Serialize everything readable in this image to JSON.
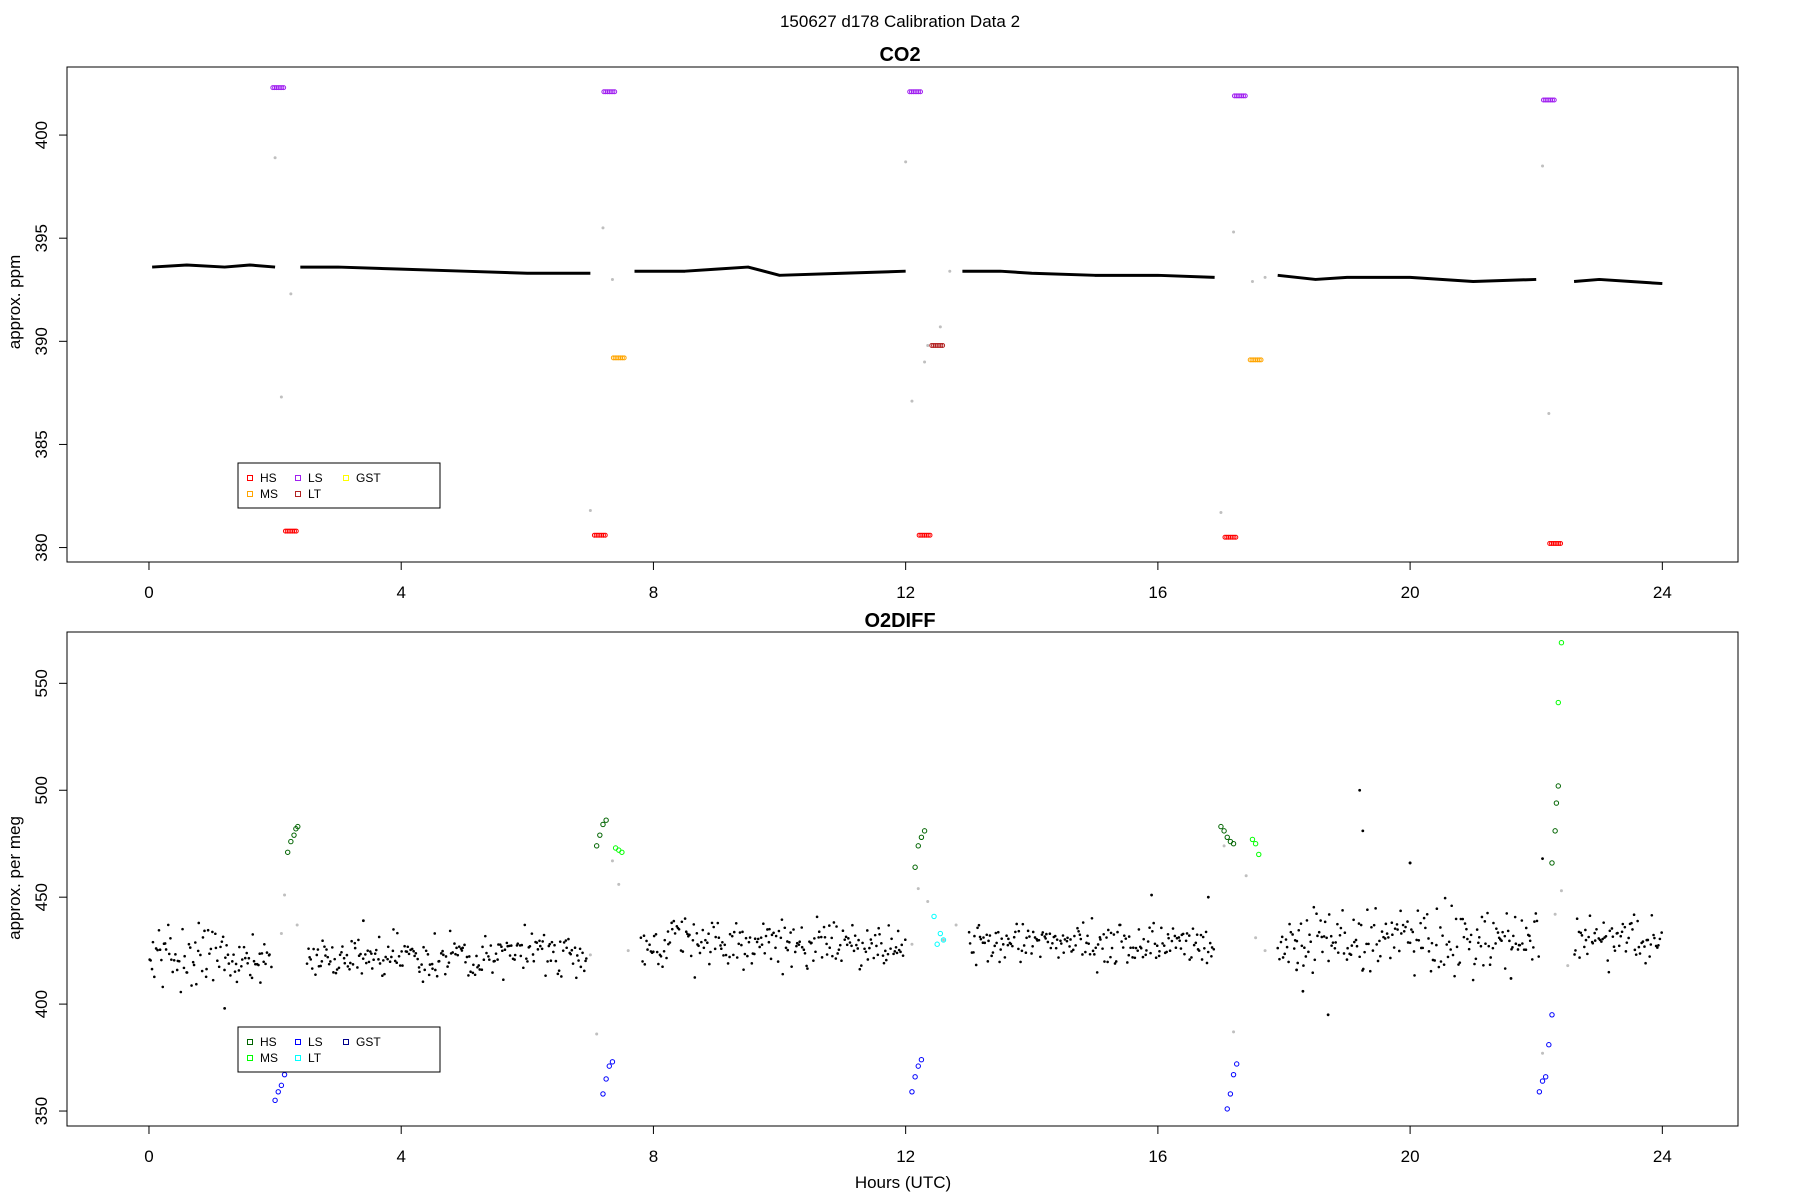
{
  "figure": {
    "suptitle": "150627   d178   Calibration Data 2",
    "xlabel": "Hours (UTC)"
  },
  "chart_data": [
    {
      "type": "scatter",
      "title": "CO2",
      "xlabel": "",
      "ylabel": "approx. ppm",
      "xlim": [
        -1.3,
        25.2
      ],
      "ylim": [
        379.3,
        403.3
      ],
      "xticks": [
        0,
        4,
        8,
        12,
        16,
        20,
        24
      ],
      "yticks": [
        380,
        385,
        390,
        395,
        400
      ],
      "legend": {
        "placement": "bottom-left",
        "entries": [
          {
            "label": "HS",
            "color": "#ff0000"
          },
          {
            "label": "MS",
            "color": "#ffa500"
          },
          {
            "label": "LS",
            "color": "#a020f0"
          },
          {
            "label": "LT",
            "color": "#b22222"
          },
          {
            "label": "GST",
            "color": "#ffff00"
          }
        ]
      },
      "ambient": {
        "color": "#000000",
        "segments": [
          {
            "x": [
              0.05,
              0.6,
              1.2,
              1.6,
              2.0
            ],
            "y": [
              393.6,
              393.7,
              393.6,
              393.7,
              393.6
            ]
          },
          {
            "x": [
              2.4,
              3.0,
              4.0,
              5.0,
              6.0,
              7.0
            ],
            "y": [
              393.6,
              393.6,
              393.5,
              393.4,
              393.3,
              393.3
            ]
          },
          {
            "x": [
              7.7,
              8.5,
              9.0,
              9.5,
              10.0,
              11.0,
              12.0
            ],
            "y": [
              393.4,
              393.4,
              393.5,
              393.6,
              393.2,
              393.3,
              393.4
            ]
          },
          {
            "x": [
              12.9,
              13.5,
              14.0,
              15.0,
              16.0,
              16.9
            ],
            "y": [
              393.4,
              393.4,
              393.3,
              393.2,
              393.2,
              393.1
            ]
          },
          {
            "x": [
              17.9,
              18.5,
              19.0,
              20.0,
              21.0,
              22.0
            ],
            "y": [
              393.2,
              393.0,
              393.1,
              393.1,
              392.9,
              393.0
            ]
          },
          {
            "x": [
              22.6,
              23.0,
              23.5,
              24.0
            ],
            "y": [
              392.9,
              393.0,
              392.9,
              392.8
            ]
          }
        ]
      },
      "excluded": {
        "color": "#bfbfbf",
        "x": [
          2.0,
          2.25,
          7.0,
          7.2,
          12.0,
          12.1,
          12.3,
          12.55,
          12.7,
          17.0,
          17.2,
          17.5,
          17.7,
          22.1,
          22.2,
          2.1,
          7.35,
          12.35
        ],
        "y": [
          398.9,
          392.3,
          381.8,
          395.5,
          398.7,
          387.1,
          389.0,
          390.7,
          393.4,
          381.7,
          395.3,
          392.9,
          393.1,
          398.5,
          386.5,
          387.3,
          393.0,
          389.8
        ]
      },
      "series": [
        {
          "name": "HS",
          "color": "#ff0000",
          "marker": "circle",
          "x": [
            2.25,
            7.15,
            12.3,
            17.15,
            22.3
          ],
          "y": [
            380.8,
            380.6,
            380.6,
            380.5,
            380.2
          ]
        },
        {
          "name": "MS",
          "color": "#ffa500",
          "marker": "circle",
          "x": [
            7.45,
            17.55
          ],
          "y": [
            389.2,
            389.1
          ]
        },
        {
          "name": "LS",
          "color": "#a020f0",
          "marker": "circle",
          "x": [
            2.05,
            7.3,
            12.15,
            17.3,
            22.2
          ],
          "y": [
            402.3,
            402.1,
            402.1,
            401.9,
            401.7
          ]
        },
        {
          "name": "LT",
          "color": "#b22222",
          "marker": "circle",
          "x": [
            12.5
          ],
          "y": [
            389.8
          ]
        },
        {
          "name": "GST",
          "color": "#ffff00",
          "marker": "circle",
          "x": [],
          "y": []
        }
      ]
    },
    {
      "type": "scatter",
      "title": "O2DIFF",
      "xlabel": "Hours (UTC)",
      "ylabel": "approx. per meg",
      "xlim": [
        -1.3,
        25.2
      ],
      "ylim": [
        343.0,
        574.0
      ],
      "xticks": [
        0,
        4,
        8,
        12,
        16,
        20,
        24
      ],
      "yticks": [
        350,
        400,
        450,
        500,
        550
      ],
      "legend": {
        "placement": "bottom-left",
        "entries": [
          {
            "label": "HS",
            "color": "#006400"
          },
          {
            "label": "MS",
            "color": "#00ff00"
          },
          {
            "label": "LS",
            "color": "#0000ff"
          },
          {
            "label": "LT",
            "color": "#00ffff"
          },
          {
            "label": "GST",
            "color": "#00008b"
          }
        ]
      },
      "ambient": {
        "color": "#000000",
        "ranges": [
          {
            "from": 0.0,
            "to": 1.95,
            "mean": 421,
            "spread": 9
          },
          {
            "from": 2.5,
            "to": 6.95,
            "mean": 422,
            "spread": 7
          },
          {
            "from": 7.8,
            "to": 12.0,
            "mean": 428,
            "spread": 7
          },
          {
            "from": 13.0,
            "to": 16.9,
            "mean": 428,
            "spread": 6
          },
          {
            "from": 17.9,
            "to": 22.05,
            "mean": 431,
            "spread": 10
          },
          {
            "from": 22.6,
            "to": 24.0,
            "mean": 430,
            "spread": 7
          }
        ],
        "outliers": {
          "x": [
            1.2,
            3.4,
            15.9,
            16.8,
            18.2,
            18.3,
            18.7,
            19.2,
            19.25,
            20.0,
            20.0,
            21.6,
            22.1
          ],
          "y": [
            398,
            439,
            451,
            450,
            416,
            406,
            395,
            500,
            481,
            466,
            466,
            412,
            468
          ]
        }
      },
      "excluded": {
        "color": "#bfbfbf",
        "x": [
          2.1,
          2.15,
          2.35,
          7.0,
          7.1,
          7.35,
          7.45,
          7.6,
          12.1,
          12.2,
          12.35,
          12.6,
          12.8,
          17.05,
          17.2,
          17.4,
          17.55,
          17.7,
          22.1,
          22.3,
          22.4,
          22.5
        ],
        "y": [
          433,
          451,
          437,
          423,
          386,
          467,
          456,
          425,
          428,
          454,
          448,
          430,
          437,
          474,
          387,
          460,
          431,
          425,
          377,
          442,
          453,
          418
        ]
      },
      "series": [
        {
          "name": "HS",
          "color": "#006400",
          "marker": "circle",
          "x": [
            2.2,
            2.25,
            2.3,
            2.33,
            2.36,
            7.1,
            7.15,
            7.2,
            7.25,
            12.15,
            12.2,
            12.25,
            12.3,
            17.0,
            17.05,
            17.1,
            17.15,
            17.2,
            22.25,
            22.3,
            22.32,
            22.35
          ],
          "y": [
            471,
            476,
            479,
            482,
            483,
            474,
            479,
            484,
            486,
            464,
            474,
            478,
            481,
            483,
            481,
            478,
            476,
            475,
            466,
            481,
            494,
            502
          ]
        },
        {
          "name": "MS",
          "color": "#00ff00",
          "marker": "circle",
          "x": [
            7.4,
            7.45,
            7.5,
            17.5,
            17.55,
            17.6,
            22.35,
            22.4
          ],
          "y": [
            473,
            472,
            471,
            477,
            475,
            470,
            541,
            569
          ]
        },
        {
          "name": "LS",
          "color": "#0000ff",
          "marker": "circle",
          "x": [
            2.0,
            2.05,
            2.1,
            2.15,
            7.2,
            7.25,
            7.3,
            7.35,
            12.1,
            12.15,
            12.2,
            12.25,
            17.1,
            17.15,
            17.2,
            17.25,
            22.05,
            22.1,
            22.15,
            22.2,
            22.25
          ],
          "y": [
            355,
            359,
            362,
            367,
            358,
            365,
            371,
            373,
            359,
            366,
            371,
            374,
            351,
            358,
            367,
            372,
            359,
            364,
            366,
            381,
            395
          ]
        },
        {
          "name": "LT",
          "color": "#00ffff",
          "marker": "circle",
          "x": [
            12.45,
            12.5,
            12.55,
            12.6
          ],
          "y": [
            441,
            428,
            433,
            430
          ]
        },
        {
          "name": "GST",
          "color": "#00008b",
          "marker": "circle",
          "x": [],
          "y": []
        }
      ]
    }
  ]
}
